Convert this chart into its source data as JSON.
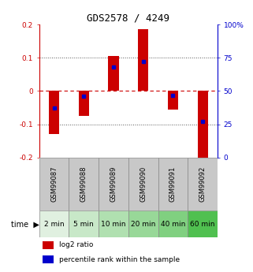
{
  "title": "GDS2578 / 4249",
  "samples": [
    "GSM99087",
    "GSM99088",
    "GSM99089",
    "GSM99090",
    "GSM99091",
    "GSM99092"
  ],
  "timepoints": [
    "2 min",
    "5 min",
    "10 min",
    "20 min",
    "40 min",
    "60 min"
  ],
  "log2_ratio": [
    -0.13,
    -0.075,
    0.105,
    0.185,
    -0.055,
    -0.205
  ],
  "percentile_rank": [
    37,
    46,
    68,
    72,
    47,
    27
  ],
  "ylim": [
    -0.2,
    0.2
  ],
  "yticks": [
    -0.2,
    -0.1,
    0.0,
    0.1,
    0.2
  ],
  "ytick_labels": [
    "-0.2",
    "-0.1",
    "0",
    "0.1",
    "0.2"
  ],
  "right_yticks": [
    0,
    25,
    50,
    75,
    100
  ],
  "right_ytick_labels": [
    "0",
    "25",
    "50",
    "75",
    "100%"
  ],
  "bar_color": "#cc0000",
  "dot_color": "#0000cc",
  "bg_color": "#ffffff",
  "sample_bg": "#c8c8c8",
  "time_bg_colors": [
    "#e0f0e0",
    "#c8e8c8",
    "#b0e0b0",
    "#98d898",
    "#80d080",
    "#50c050"
  ],
  "zero_line_color": "#cc0000",
  "dotted_color": "#555555",
  "bar_width": 0.35,
  "title_fontsize": 9,
  "tick_fontsize": 6.5,
  "sample_fontsize": 6,
  "time_fontsize": 6.5,
  "legend_fontsize": 6.5
}
